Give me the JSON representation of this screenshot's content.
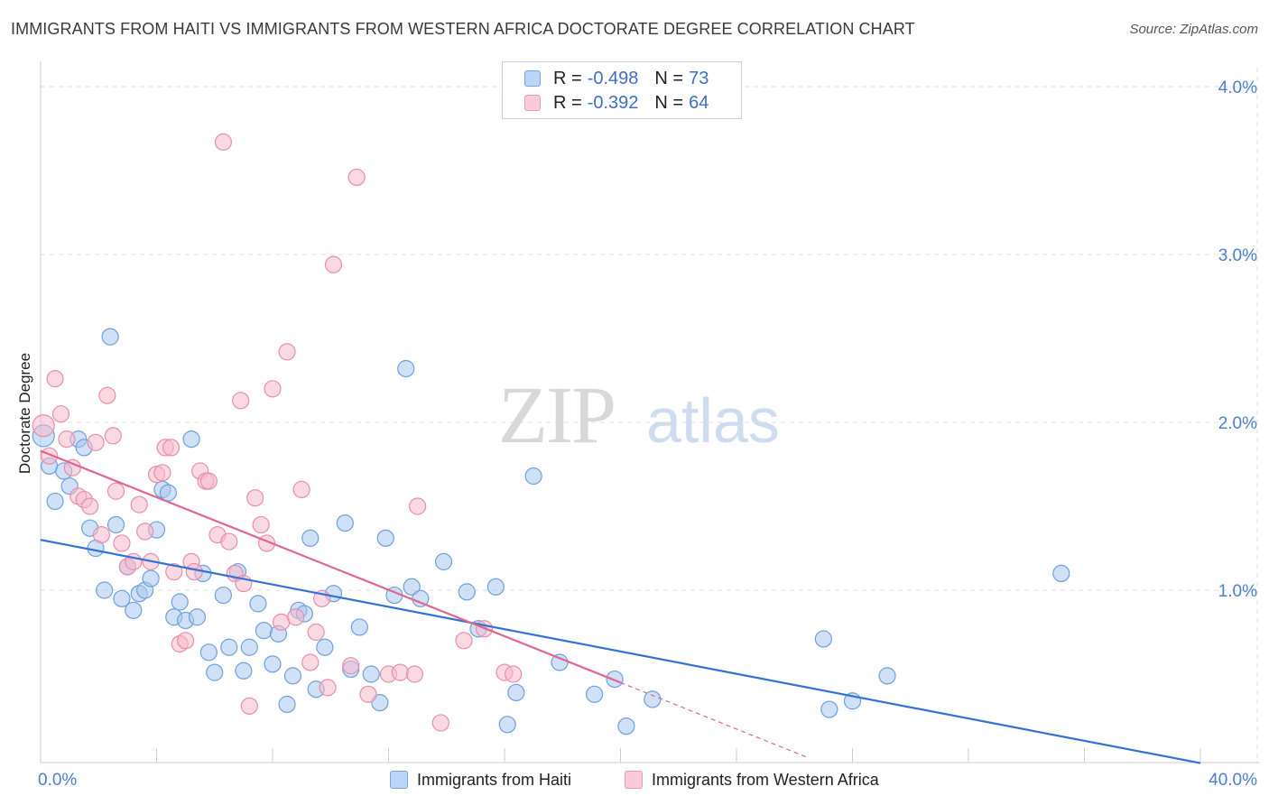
{
  "header": {
    "title": "IMMIGRANTS FROM HAITI VS IMMIGRANTS FROM WESTERN AFRICA DOCTORATE DEGREE CORRELATION CHART",
    "source": "Source: ZipAtlas.com"
  },
  "watermark": {
    "zip": "ZIP",
    "atlas": "atlas"
  },
  "legend": {
    "haiti": {
      "r_label": "R =",
      "r_value": "-0.498",
      "n_label": "N =",
      "n_value": "73"
    },
    "wafrica": {
      "r_label": "R =",
      "r_value": "-0.392",
      "n_label": "N =",
      "n_value": "64"
    }
  },
  "colors": {
    "haiti_fill": "#a9c8f0",
    "haiti_stroke": "#6f9fdd",
    "haiti_line": "#3273d1",
    "wafrica_fill": "#f6b9cc",
    "wafrica_stroke": "#e68fab",
    "wafrica_line": "#e0668f",
    "axis_text": "#4a7fcf",
    "grid": "#dddddd"
  },
  "chart_data": {
    "type": "scatter",
    "title": "IMMIGRANTS FROM HAITI VS IMMIGRANTS FROM WESTERN AFRICA DOCTORATE DEGREE CORRELATION CHART",
    "xlabel": "",
    "ylabel": "Doctorate Degree",
    "xlim": [
      0,
      40
    ],
    "ylim": [
      0,
      4.2
    ],
    "x_tick_labels": [
      "0.0%",
      "40.0%"
    ],
    "y_ticks": [
      1.0,
      2.0,
      3.0,
      4.0
    ],
    "y_tick_labels": [
      "1.0%",
      "2.0%",
      "3.0%",
      "4.0%"
    ],
    "grid": true,
    "legend_position": "top-center",
    "series": [
      {
        "name": "Immigrants from Haiti",
        "r": -0.498,
        "n": 73,
        "trend": {
          "x": [
            0,
            40
          ],
          "y": [
            1.3,
            -0.03
          ]
        },
        "points": [
          [
            0.1,
            1.92
          ],
          [
            0.3,
            1.74
          ],
          [
            0.8,
            1.71
          ],
          [
            0.5,
            1.53
          ],
          [
            1.0,
            1.62
          ],
          [
            1.3,
            1.9
          ],
          [
            1.5,
            1.85
          ],
          [
            2.4,
            2.51
          ],
          [
            1.7,
            1.37
          ],
          [
            1.9,
            1.25
          ],
          [
            2.2,
            1.0
          ],
          [
            2.6,
            1.39
          ],
          [
            2.8,
            0.95
          ],
          [
            3.0,
            1.14
          ],
          [
            3.2,
            0.88
          ],
          [
            3.4,
            0.98
          ],
          [
            3.6,
            1.0
          ],
          [
            3.8,
            1.07
          ],
          [
            4.0,
            1.36
          ],
          [
            4.2,
            1.6
          ],
          [
            4.4,
            1.58
          ],
          [
            4.6,
            0.84
          ],
          [
            4.8,
            0.93
          ],
          [
            5.0,
            0.82
          ],
          [
            5.2,
            1.9
          ],
          [
            5.4,
            0.84
          ],
          [
            5.6,
            1.1
          ],
          [
            5.8,
            0.63
          ],
          [
            6.0,
            0.51
          ],
          [
            6.3,
            0.97
          ],
          [
            6.5,
            0.66
          ],
          [
            6.8,
            1.11
          ],
          [
            7.0,
            0.52
          ],
          [
            7.2,
            0.66
          ],
          [
            7.5,
            0.92
          ],
          [
            7.7,
            0.76
          ],
          [
            8.0,
            0.56
          ],
          [
            8.2,
            0.74
          ],
          [
            8.5,
            0.32
          ],
          [
            8.7,
            0.49
          ],
          [
            8.9,
            0.88
          ],
          [
            9.1,
            0.86
          ],
          [
            9.3,
            1.31
          ],
          [
            9.5,
            0.41
          ],
          [
            9.8,
            0.66
          ],
          [
            10.1,
            0.98
          ],
          [
            10.5,
            1.4
          ],
          [
            10.7,
            0.53
          ],
          [
            11.0,
            0.78
          ],
          [
            11.4,
            0.5
          ],
          [
            11.7,
            0.33
          ],
          [
            11.9,
            1.31
          ],
          [
            12.2,
            0.97
          ],
          [
            12.6,
            2.32
          ],
          [
            12.8,
            1.02
          ],
          [
            13.1,
            0.95
          ],
          [
            13.9,
            1.17
          ],
          [
            14.7,
            0.99
          ],
          [
            15.1,
            0.77
          ],
          [
            15.7,
            1.02
          ],
          [
            16.1,
            0.2
          ],
          [
            16.4,
            0.39
          ],
          [
            17.0,
            1.68
          ],
          [
            17.9,
            0.57
          ],
          [
            19.1,
            0.38
          ],
          [
            19.8,
            0.47
          ],
          [
            20.2,
            0.19
          ],
          [
            21.1,
            0.35
          ],
          [
            27.0,
            0.71
          ],
          [
            27.2,
            0.29
          ],
          [
            28.0,
            0.34
          ],
          [
            29.2,
            0.49
          ],
          [
            35.2,
            1.1
          ]
        ]
      },
      {
        "name": "Immigrants from Western Africa",
        "r": -0.392,
        "n": 64,
        "trend": {
          "x": [
            0,
            20
          ],
          "y": [
            1.83,
            0.45
          ]
        },
        "trend_dashed": {
          "x": [
            20,
            26.5
          ],
          "y": [
            0.45,
            0.0
          ]
        },
        "points": [
          [
            0.1,
            1.98
          ],
          [
            0.3,
            1.8
          ],
          [
            0.5,
            2.26
          ],
          [
            0.7,
            2.05
          ],
          [
            0.9,
            1.9
          ],
          [
            1.1,
            1.73
          ],
          [
            1.3,
            1.56
          ],
          [
            1.5,
            1.54
          ],
          [
            1.7,
            1.5
          ],
          [
            1.9,
            1.88
          ],
          [
            2.1,
            1.33
          ],
          [
            2.3,
            2.16
          ],
          [
            2.5,
            1.92
          ],
          [
            2.6,
            1.59
          ],
          [
            2.8,
            1.28
          ],
          [
            3.0,
            1.14
          ],
          [
            3.2,
            1.17
          ],
          [
            3.4,
            1.51
          ],
          [
            3.6,
            1.35
          ],
          [
            3.8,
            1.17
          ],
          [
            4.0,
            1.69
          ],
          [
            4.2,
            1.7
          ],
          [
            4.3,
            1.85
          ],
          [
            4.5,
            1.85
          ],
          [
            4.6,
            1.11
          ],
          [
            4.8,
            0.68
          ],
          [
            5.0,
            0.7
          ],
          [
            5.2,
            1.17
          ],
          [
            5.3,
            1.11
          ],
          [
            5.5,
            1.71
          ],
          [
            5.7,
            1.65
          ],
          [
            5.8,
            1.65
          ],
          [
            6.1,
            1.33
          ],
          [
            6.3,
            3.67
          ],
          [
            6.5,
            1.29
          ],
          [
            6.7,
            1.1
          ],
          [
            6.9,
            2.13
          ],
          [
            7.0,
            1.04
          ],
          [
            7.2,
            0.31
          ],
          [
            7.4,
            1.55
          ],
          [
            7.6,
            1.39
          ],
          [
            7.8,
            1.28
          ],
          [
            8.0,
            2.2
          ],
          [
            8.3,
            0.81
          ],
          [
            8.5,
            2.42
          ],
          [
            8.8,
            0.84
          ],
          [
            9.0,
            1.6
          ],
          [
            9.3,
            0.57
          ],
          [
            9.5,
            0.75
          ],
          [
            9.7,
            0.95
          ],
          [
            9.9,
            0.42
          ],
          [
            10.1,
            2.94
          ],
          [
            10.7,
            0.55
          ],
          [
            10.9,
            3.46
          ],
          [
            11.3,
            0.38
          ],
          [
            12.0,
            0.5
          ],
          [
            12.4,
            0.51
          ],
          [
            12.9,
            0.5
          ],
          [
            13.0,
            1.5
          ],
          [
            13.8,
            0.21
          ],
          [
            14.6,
            0.7
          ],
          [
            15.3,
            0.77
          ],
          [
            16.0,
            0.51
          ],
          [
            16.3,
            0.5
          ]
        ]
      }
    ]
  },
  "bottom_legend": {
    "haiti_label": "Immigrants from Haiti",
    "wafrica_label": "Immigrants from Western Africa"
  }
}
